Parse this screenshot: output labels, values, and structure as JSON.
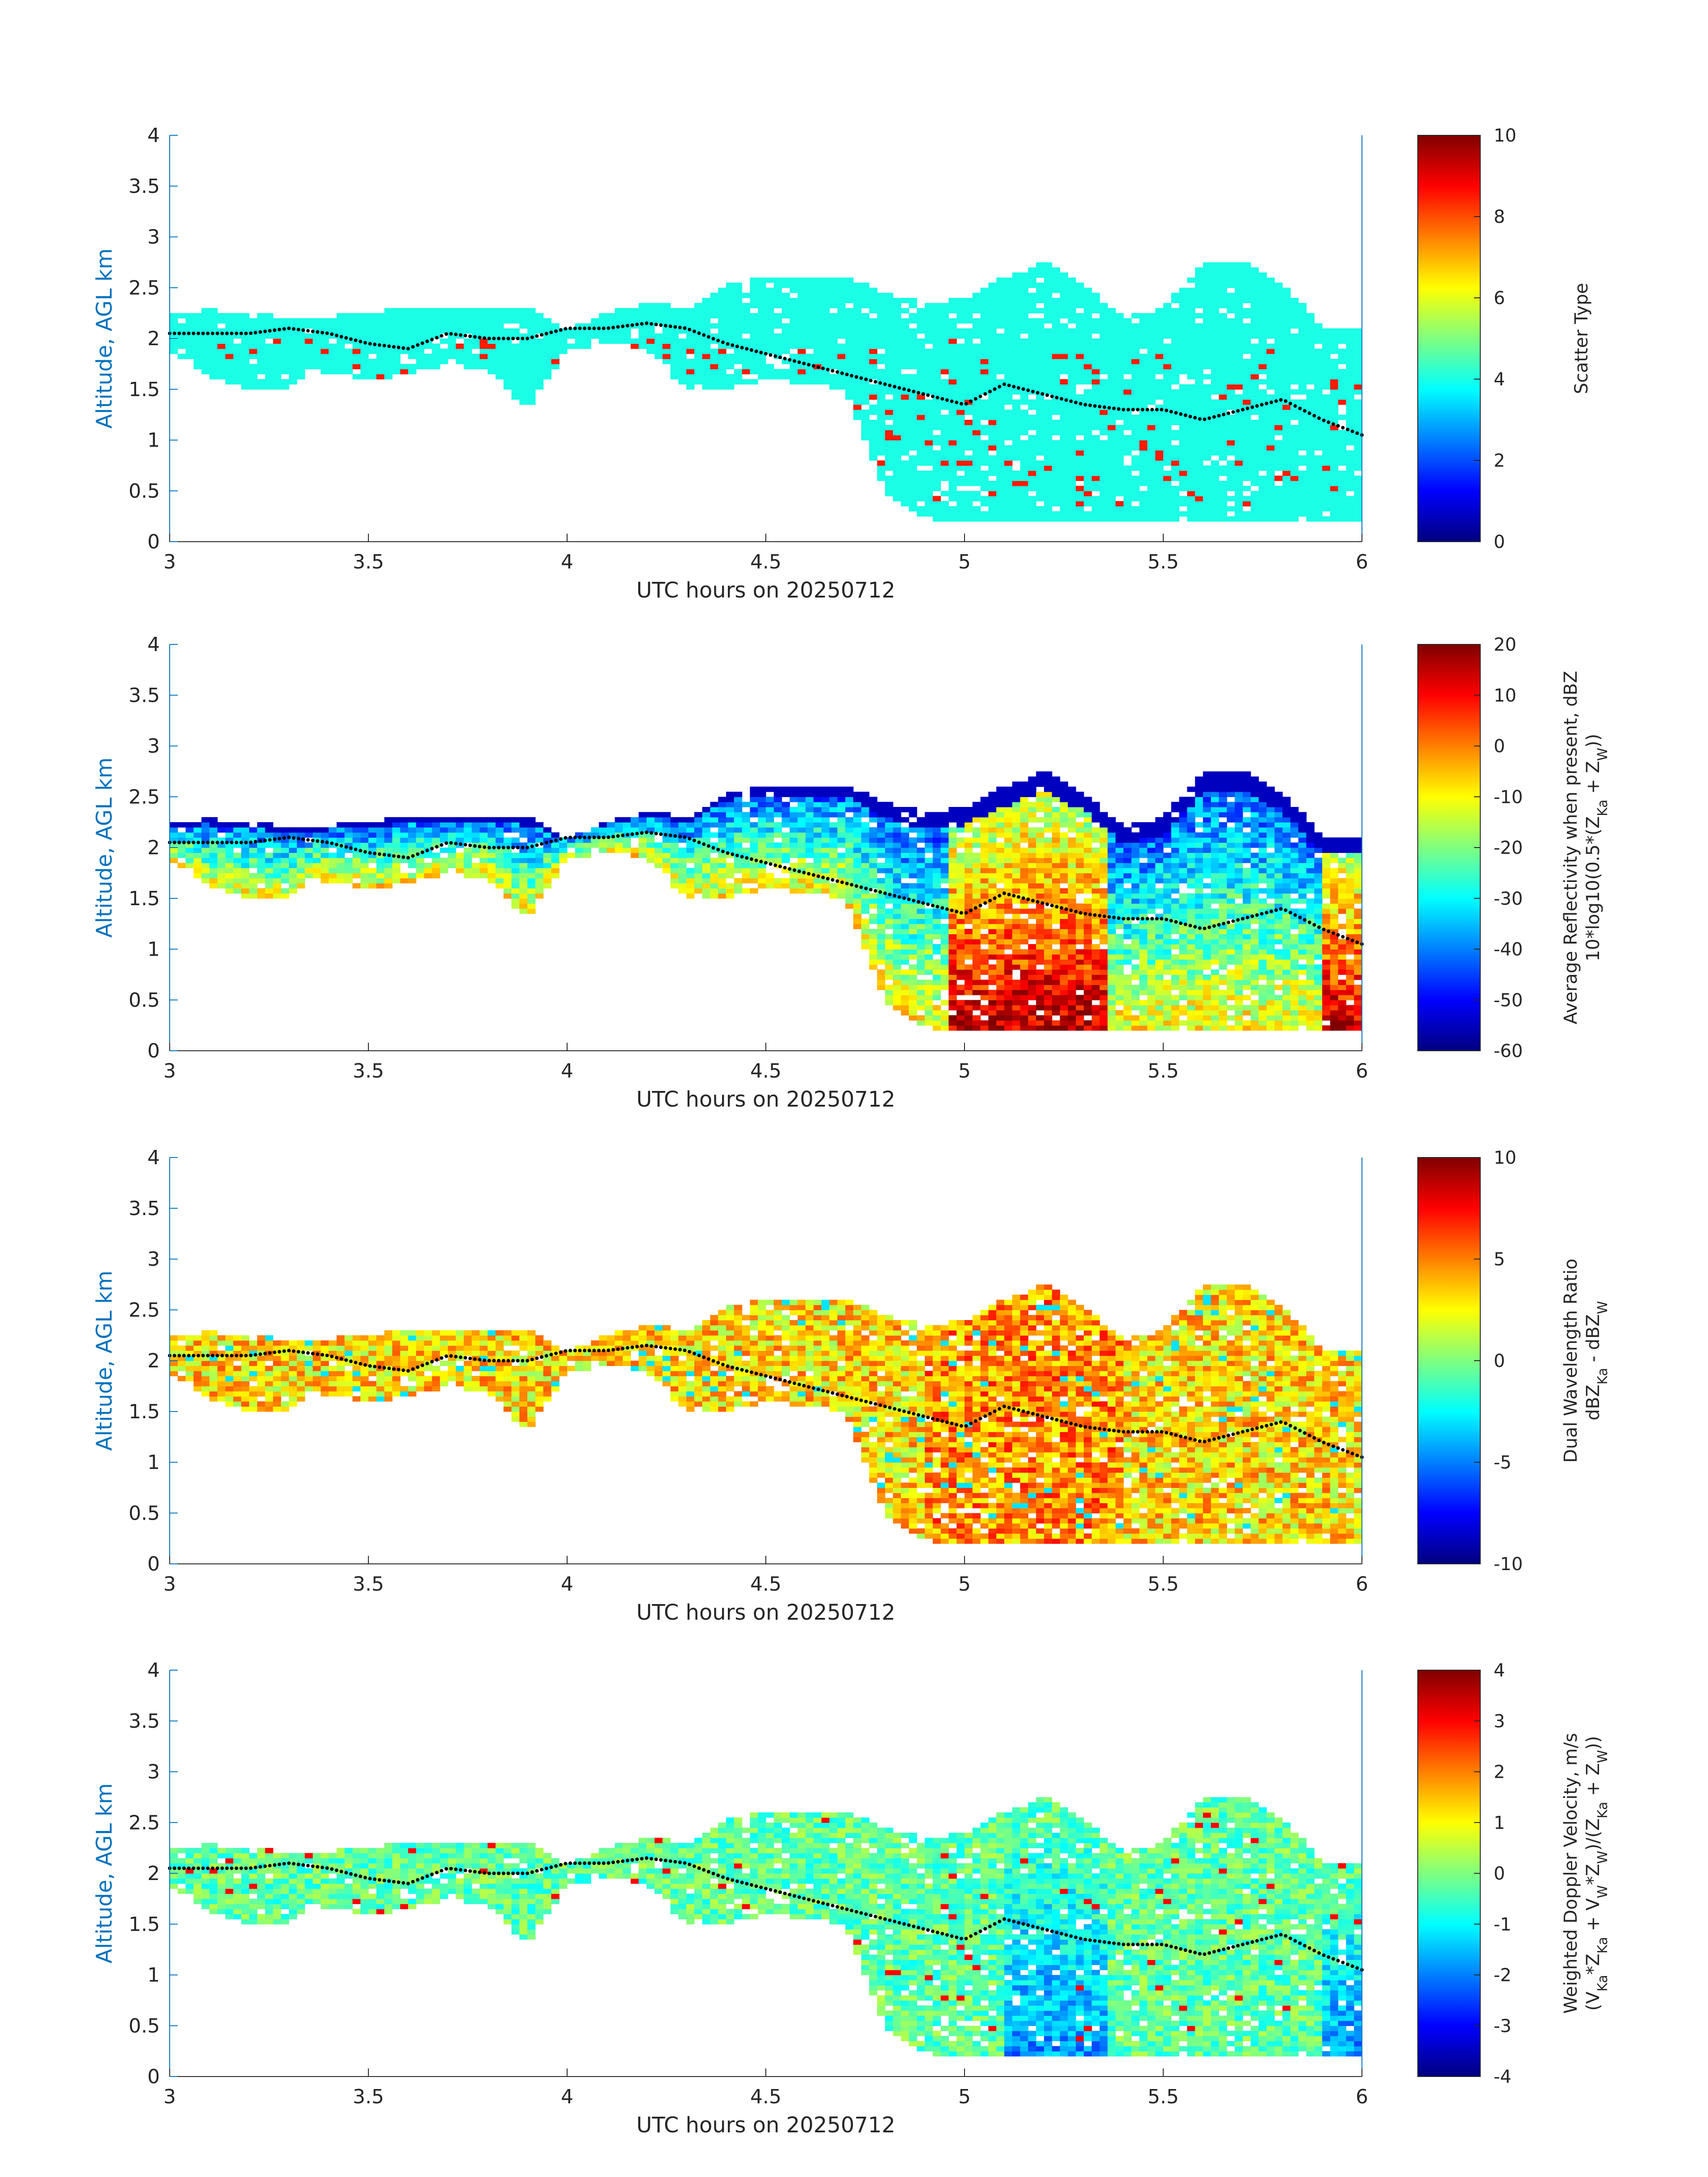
{
  "figure": {
    "xlabel": "UTC hours on 20250712",
    "ylabel": "Altitude, AGL km",
    "xticks": [
      "3",
      "3.5",
      "4",
      "4.5",
      "5",
      "5.5",
      "6"
    ],
    "yticks": [
      "0",
      "0.5",
      "1",
      "1.5",
      "2",
      "2.5",
      "3",
      "3.5",
      "4"
    ]
  },
  "colors": {
    "axis_label": "#0072BD",
    "axis_line": "#0072BD",
    "dots": "#000000"
  },
  "chart_data": [
    {
      "type": "heatmap",
      "name": "Scatter Type",
      "xlabel": "UTC hours on 20250712",
      "ylabel": "Altitude, AGL km",
      "xlim": [
        3,
        6
      ],
      "ylim": [
        0,
        4
      ],
      "colorbar": {
        "label_lines": [
          "Scatter Type"
        ],
        "clim": [
          0,
          10
        ],
        "ticks": [
          "0",
          "2",
          "4",
          "6",
          "8",
          "10"
        ]
      },
      "dominant_value": 4,
      "secondary_value": 8.5
    },
    {
      "type": "heatmap",
      "name": "Average Reflectivity",
      "xlabel": "UTC hours on 20250712",
      "ylabel": "Altitude, AGL km",
      "xlim": [
        3,
        6
      ],
      "ylim": [
        0,
        4
      ],
      "colorbar": {
        "label_lines": [
          "Average Reflectivity when present, dBZ",
          "10*log10(0.5*(Z",
          "Ka",
          " + Z",
          "W",
          "))"
        ],
        "clim": [
          -60,
          20
        ],
        "ticks": [
          "-60",
          "-50",
          "-40",
          "-30",
          "-20",
          "-10",
          "0",
          "10",
          "20"
        ]
      }
    },
    {
      "type": "heatmap",
      "name": "Dual Wavelength Ratio",
      "xlabel": "UTC hours on 20250712",
      "ylabel": "Altitude, AGL km",
      "xlim": [
        3,
        6
      ],
      "ylim": [
        0,
        4
      ],
      "colorbar": {
        "label_lines": [
          "Dual Wavelength Ratio",
          "dBZ",
          "Ka",
          " - dBZ",
          "W"
        ],
        "clim": [
          -10,
          10
        ],
        "ticks": [
          "-10",
          "-5",
          "0",
          "5",
          "10"
        ]
      }
    },
    {
      "type": "heatmap",
      "name": "Weighted Doppler Velocity",
      "xlabel": "UTC hours on 20250712",
      "ylabel": "Altitude, AGL km",
      "xlim": [
        3,
        6
      ],
      "ylim": [
        0,
        4
      ],
      "colorbar": {
        "label_lines": [
          "Weighted Doppler Velocity, m/s",
          "(V",
          "Ka",
          "*Z",
          "Ka",
          " + V",
          "W",
          "*Z",
          "W",
          ")/(Z",
          "Ka",
          " + Z",
          "W",
          "))"
        ],
        "clim": [
          -4,
          4
        ],
        "ticks": [
          "-4",
          "-3",
          "-2",
          "-1",
          "0",
          "1",
          "2",
          "3",
          "4"
        ]
      }
    }
  ],
  "cloud_outline": {
    "x": [
      3.0,
      3.1,
      3.2,
      3.3,
      3.35,
      3.5,
      3.6,
      3.7,
      3.8,
      3.9,
      4.0,
      4.1,
      4.2,
      4.3,
      4.4,
      4.5,
      4.6,
      4.7,
      4.8,
      4.9,
      5.0,
      5.1,
      5.2,
      5.3,
      5.4,
      5.5,
      5.6,
      5.7,
      5.8,
      5.9,
      6.0
    ],
    "top": [
      2.25,
      2.28,
      2.25,
      2.2,
      2.2,
      2.25,
      2.3,
      2.3,
      2.3,
      2.3,
      2.1,
      2.25,
      2.35,
      2.3,
      2.55,
      2.6,
      2.6,
      2.6,
      2.45,
      2.35,
      2.4,
      2.6,
      2.75,
      2.55,
      2.2,
      2.3,
      2.75,
      2.75,
      2.55,
      2.1,
      2.1
    ],
    "base": [
      1.9,
      1.6,
      1.5,
      1.5,
      1.7,
      1.6,
      1.65,
      1.75,
      1.7,
      1.3,
      1.9,
      1.95,
      1.9,
      1.5,
      1.5,
      1.6,
      1.55,
      1.5,
      0.5,
      0.2,
      0.2,
      0.2,
      0.2,
      0.2,
      0.2,
      0.2,
      0.2,
      0.2,
      0.2,
      0.2,
      0.2
    ]
  },
  "dot_trace": {
    "x": [
      3.0,
      3.1,
      3.2,
      3.3,
      3.4,
      3.5,
      3.6,
      3.7,
      3.8,
      3.9,
      4.0,
      4.1,
      4.2,
      4.3,
      4.4,
      4.5,
      4.6,
      4.7,
      4.8,
      4.9,
      5.0,
      5.1,
      5.2,
      5.3,
      5.4,
      5.5,
      5.6,
      5.7,
      5.8,
      5.9,
      6.0
    ],
    "y": [
      2.05,
      2.05,
      2.05,
      2.1,
      2.05,
      1.95,
      1.9,
      2.05,
      2.0,
      2.0,
      2.1,
      2.1,
      2.15,
      2.1,
      1.95,
      1.85,
      1.75,
      1.65,
      1.55,
      1.45,
      1.35,
      1.55,
      1.45,
      1.35,
      1.3,
      1.3,
      1.2,
      1.3,
      1.4,
      1.2,
      1.05
    ]
  }
}
